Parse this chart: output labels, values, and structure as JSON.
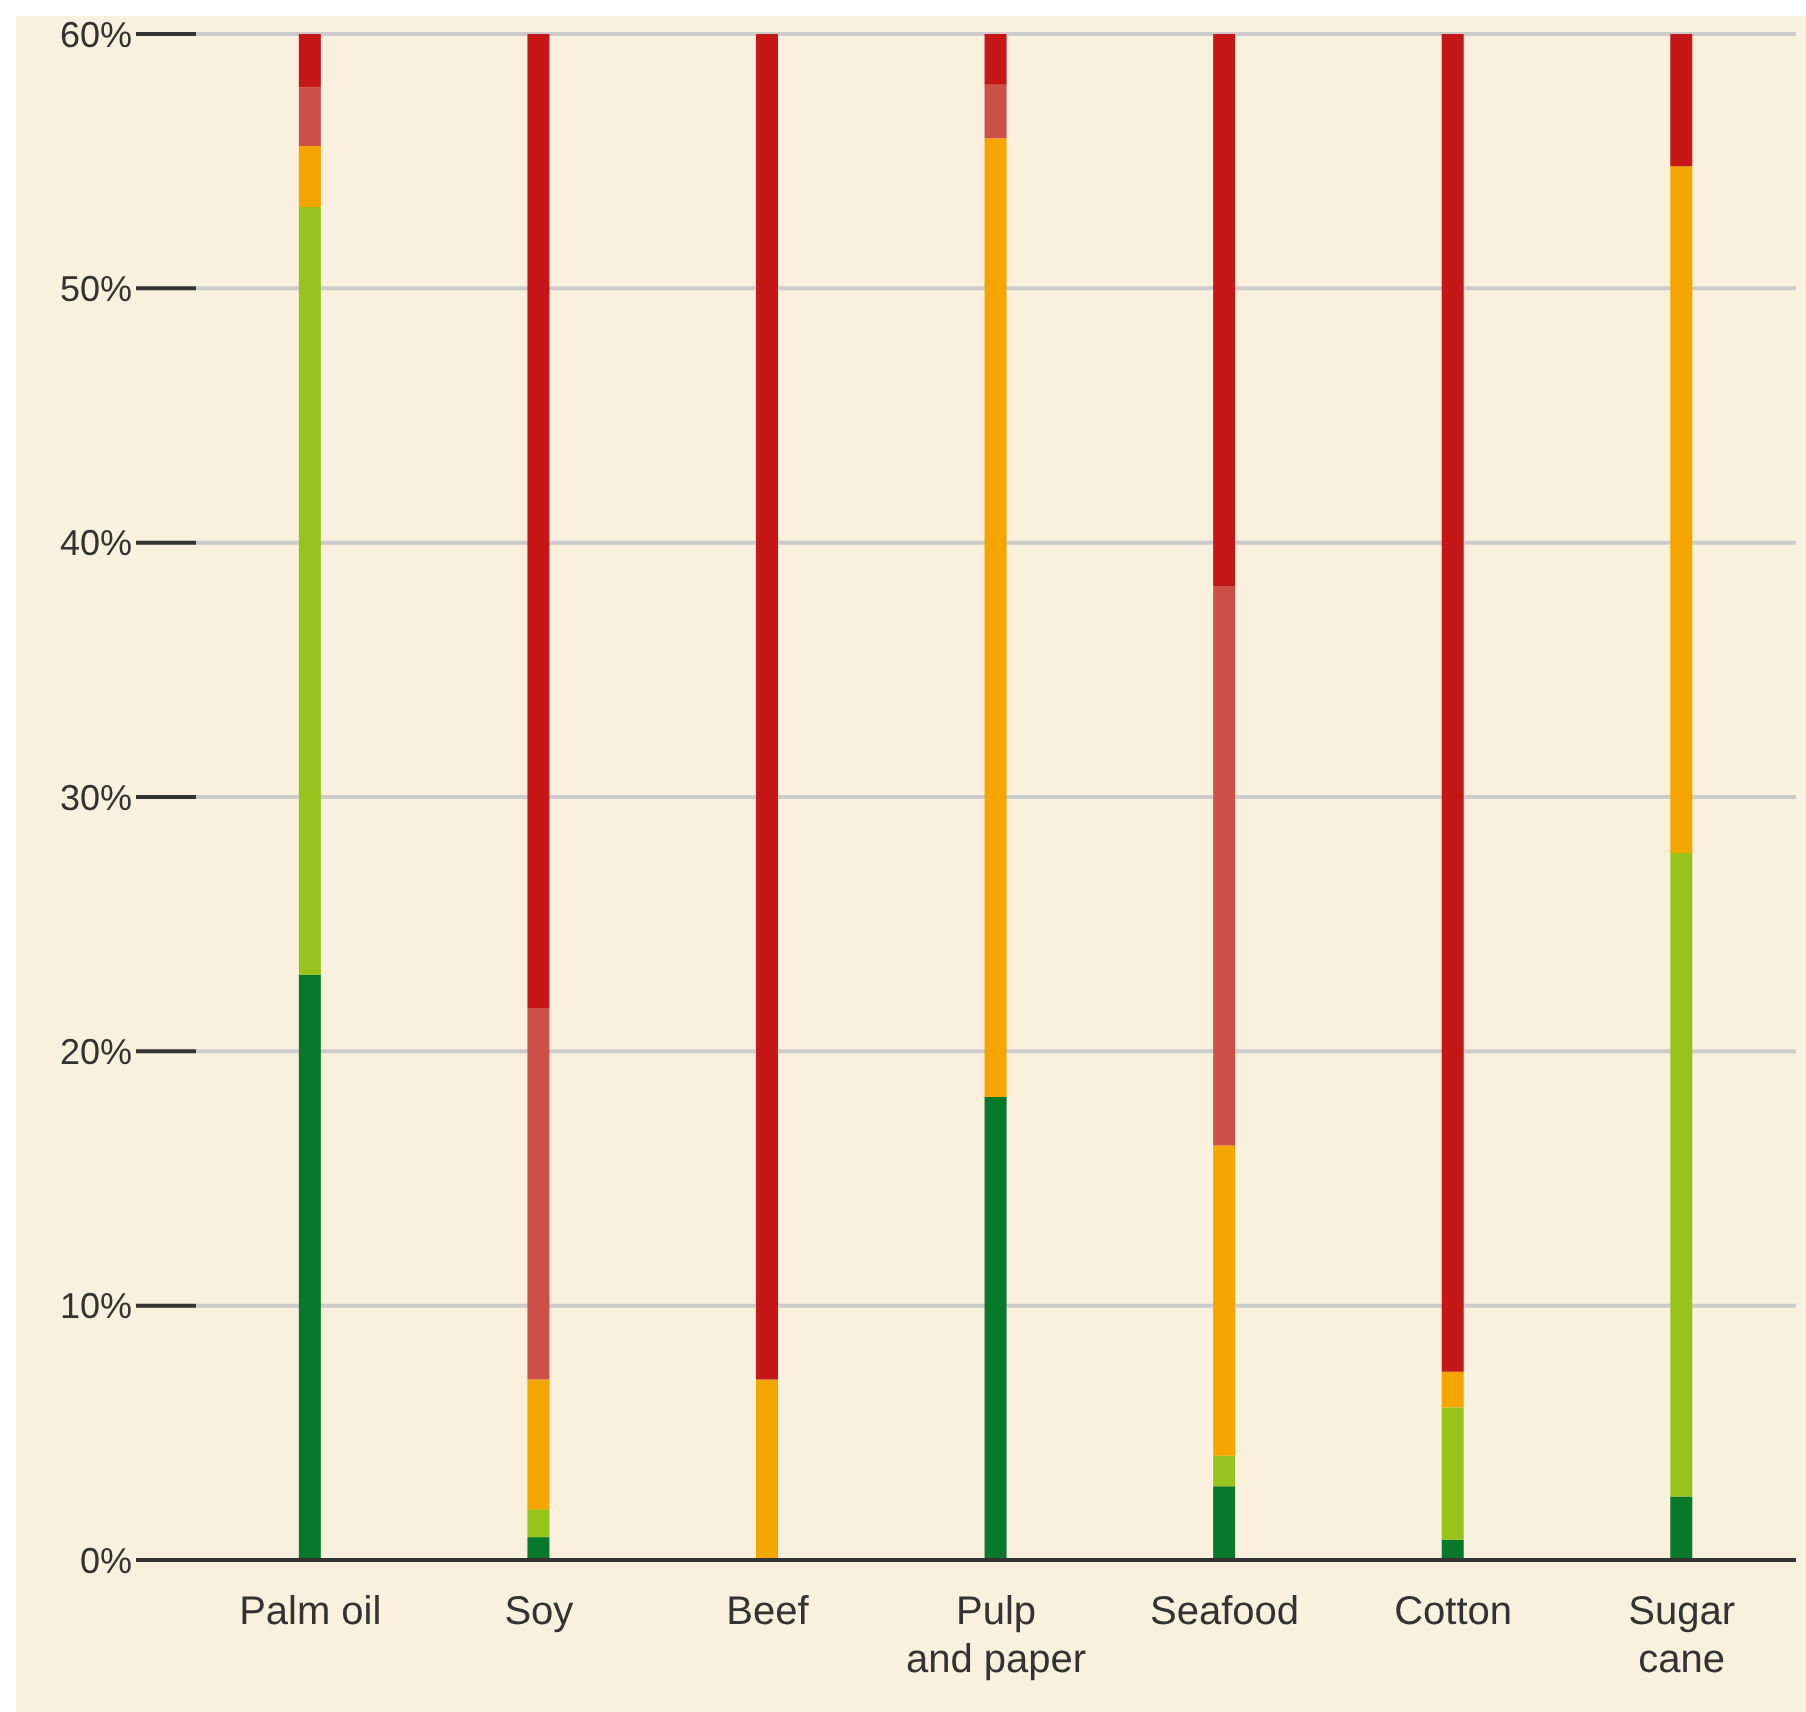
{
  "chart_data": {
    "type": "bar",
    "stacked": true,
    "grid": "y",
    "legend": false,
    "categories": [
      "Palm oil",
      "Soy",
      "Beef",
      "Pulp\nand paper",
      "Seafood",
      "Cotton",
      "Sugar\ncane"
    ],
    "series": [
      {
        "color": "#08782a",
        "values": [
          23,
          0.9,
          0,
          18.2,
          2.9,
          0.8,
          2.5
        ]
      },
      {
        "color": "#97c41c",
        "values": [
          30.2,
          1.1,
          0,
          0,
          1.2,
          5.2,
          25.3
        ]
      },
      {
        "color": "#f5a500",
        "values": [
          2.4,
          5.1,
          7.1,
          37.7,
          12.2,
          1.4,
          27
        ]
      },
      {
        "color": "#cd5048",
        "values": [
          2.3,
          14.6,
          0,
          2.1,
          22,
          0,
          0
        ]
      },
      {
        "color": "#c51718",
        "values": [
          2.1,
          38.3,
          52.9,
          2,
          21.7,
          52.6,
          5.2
        ]
      }
    ],
    "ylim": [
      0,
      60
    ],
    "yticks": [
      {
        "value": 0,
        "label": "0%"
      },
      {
        "value": 10,
        "label": "10%"
      },
      {
        "value": 20,
        "label": "20%"
      },
      {
        "value": 30,
        "label": "30%"
      },
      {
        "value": 40,
        "label": "40%"
      },
      {
        "value": 50,
        "label": "50%"
      },
      {
        "value": 60,
        "label": "60%"
      }
    ]
  }
}
